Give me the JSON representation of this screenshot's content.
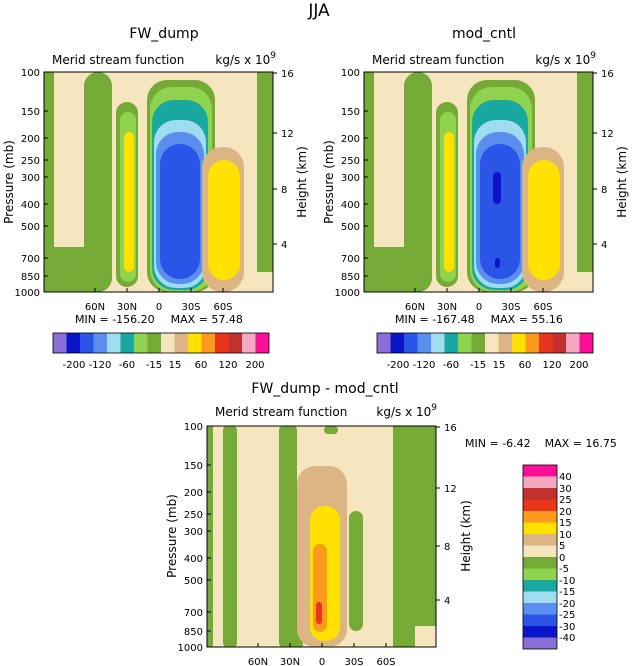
{
  "figure": {
    "title": "JJA",
    "stat_min_label": "MIN =",
    "stat_max_label": "MAX ="
  },
  "chart_data": [
    {
      "type": "heatmap",
      "title": "FW_dump",
      "subtitle_left": "Merid stream function",
      "subtitle_right": "kg/s x 10",
      "units_exponent": "9",
      "xlabel": "",
      "ylabel": "Pressure (mb)",
      "ylabel_right": "Height (km)",
      "xlim": [
        90,
        -90
      ],
      "ylim": [
        1000,
        100
      ],
      "x_ticks": [
        {
          "value": 60,
          "label": "60N"
        },
        {
          "value": 30,
          "label": "30N"
        },
        {
          "value": 0,
          "label": "0"
        },
        {
          "value": -30,
          "label": "30S"
        },
        {
          "value": -60,
          "label": "60S"
        }
      ],
      "y_ticks": [
        100,
        150,
        200,
        250,
        300,
        400,
        500,
        700,
        850,
        1000
      ],
      "height_ticks": [
        4,
        8,
        12,
        16
      ],
      "min": "-156.20",
      "max": "57.48",
      "features": [
        {
          "name": "southern-hemisphere-cross-equatorial-cell",
          "min": -156.2,
          "center_lat": 1,
          "extent_lat": [
            -12,
            17
          ],
          "top_mb": 115,
          "bottom_mb": 975
        },
        {
          "name": "northern-subtropical-cell",
          "max": 57.48,
          "center_lat": -37,
          "extent_lat": [
            -56,
            -18
          ],
          "top_mb": 185,
          "bottom_mb": 960
        },
        {
          "name": "northern-hemisphere-weak-cell",
          "max": 22,
          "center_lat": 25,
          "extent_lat": [
            17,
            33
          ],
          "top_mb": 240,
          "bottom_mb": 930
        }
      ],
      "colorbar": {
        "orientation": "horizontal",
        "colors": [
          "#8a6fd8",
          "#0a14c8",
          "#2a55e6",
          "#5a8ff0",
          "#a0dcef",
          "#19a8a0",
          "#8fd34f",
          "#76aa36",
          "#f6e6c0",
          "#dcb584",
          "#ffe100",
          "#fb9a1c",
          "#e8351c",
          "#c33030",
          "#f6a8c0",
          "#fa0f96"
        ],
        "labels": [
          "-200",
          "-120",
          "-60",
          "-15",
          "15",
          "60",
          "120",
          "200"
        ]
      }
    },
    {
      "type": "heatmap",
      "title": "mod_cntl",
      "subtitle_left": "Merid stream function",
      "subtitle_right": "kg/s x 10",
      "units_exponent": "9",
      "xlabel": "",
      "ylabel": "Pressure (mb)",
      "ylabel_right": "Height (km)",
      "xlim": [
        90,
        -90
      ],
      "ylim": [
        1000,
        100
      ],
      "x_ticks": [
        {
          "value": 60,
          "label": "60N"
        },
        {
          "value": 30,
          "label": "30N"
        },
        {
          "value": 0,
          "label": "0"
        },
        {
          "value": -30,
          "label": "30S"
        },
        {
          "value": -60,
          "label": "60S"
        }
      ],
      "y_ticks": [
        100,
        150,
        200,
        250,
        300,
        400,
        500,
        700,
        850,
        1000
      ],
      "height_ticks": [
        4,
        8,
        12,
        16
      ],
      "min": "-167.48",
      "max": "55.16",
      "features": [
        {
          "name": "southern-hemisphere-cross-equatorial-cell",
          "min": -167.48,
          "center_lat": 1,
          "extent_lat": [
            -12,
            17
          ],
          "top_mb": 115,
          "bottom_mb": 975
        },
        {
          "name": "northern-subtropical-cell",
          "max": 55.16,
          "center_lat": -37,
          "extent_lat": [
            -56,
            -18
          ],
          "top_mb": 190,
          "bottom_mb": 960
        },
        {
          "name": "northern-hemisphere-weak-cell",
          "max": 22,
          "center_lat": 25,
          "extent_lat": [
            17,
            33
          ],
          "top_mb": 240,
          "bottom_mb": 930
        }
      ],
      "colorbar": {
        "orientation": "horizontal",
        "colors": [
          "#8a6fd8",
          "#0a14c8",
          "#2a55e6",
          "#5a8ff0",
          "#a0dcef",
          "#19a8a0",
          "#8fd34f",
          "#76aa36",
          "#f6e6c0",
          "#dcb584",
          "#ffe100",
          "#fb9a1c",
          "#e8351c",
          "#c33030",
          "#f6a8c0",
          "#fa0f96"
        ],
        "labels": [
          "-200",
          "-120",
          "-60",
          "-15",
          "15",
          "60",
          "120",
          "200"
        ]
      }
    },
    {
      "type": "heatmap",
      "title": "FW_dump - mod_cntl",
      "subtitle_left": "Merid stream function",
      "subtitle_right": "kg/s x 10",
      "units_exponent": "9",
      "xlabel": "",
      "ylabel": "Pressure (mb)",
      "ylabel_right": "Height (km)",
      "xlim": [
        90,
        -90
      ],
      "ylim": [
        1000,
        100
      ],
      "x_ticks": [
        {
          "value": 60,
          "label": "60N"
        },
        {
          "value": 30,
          "label": "30N"
        },
        {
          "value": 0,
          "label": "0"
        },
        {
          "value": -30,
          "label": "30S"
        },
        {
          "value": -60,
          "label": "60S"
        }
      ],
      "y_ticks": [
        100,
        150,
        200,
        250,
        300,
        400,
        500,
        700,
        850,
        1000
      ],
      "height_ticks": [
        4,
        8,
        12,
        16
      ],
      "min": "-6.42",
      "max": "16.75",
      "features": [
        {
          "name": "equatorial-positive-difference",
          "max": 16.75,
          "center_lat": 3,
          "extent_lat": [
            -18,
            18
          ],
          "top_mb": 240,
          "bottom_mb": 960
        },
        {
          "name": "negative-bands",
          "min": -6.42,
          "lats": [
            78,
            44,
            30,
            -2,
            -42,
            -70
          ]
        }
      ],
      "colorbar": {
        "orientation": "vertical",
        "colors": [
          "#fa0f96",
          "#f6a8c0",
          "#c33030",
          "#e8351c",
          "#fb9a1c",
          "#ffe100",
          "#dcb584",
          "#f6e6c0",
          "#76aa36",
          "#8fd34f",
          "#19a8a0",
          "#a0dcef",
          "#5a8ff0",
          "#2a55e6",
          "#0a14c8",
          "#8a6fd8"
        ],
        "labels": [
          "40",
          "30",
          "25",
          "20",
          "15",
          "10",
          "5",
          "0",
          "-5",
          "-10",
          "-15",
          "-20",
          "-25",
          "-30",
          "-40"
        ]
      }
    }
  ]
}
